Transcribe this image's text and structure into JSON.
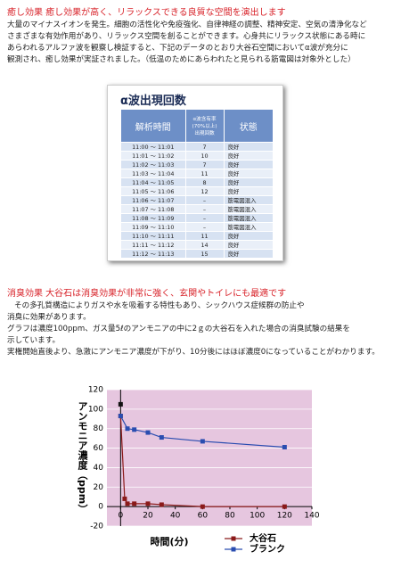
{
  "section1": {
    "heading": "癒し効果 癒し効果が高く、リラックスできる良質な空間を演出します",
    "lines": [
      "大量のマイナスイオンを発生。細胞の活性化や免疫強化、自律神経の調整、精神安定、空気の清浄化など",
      "さまざまな有効作用があり、リラックス空間を創ることができます。心身共にリラックス状態にある時に",
      "あらわれるアルファ波を観察し検証すると、下記のデータのとおり大谷石空間においてα波が充分に",
      "観測され、癒し効果が実証されました。（低温のためにあらわれたと見られる筋電図は対象外とした）"
    ]
  },
  "table": {
    "title": "α波出現回数",
    "headers": [
      "解析時間",
      [
        "α波含有率",
        "(70%以上)",
        "出現回数"
      ],
      "状態"
    ],
    "rows": [
      [
        "11:00 ～ 11:01",
        "7",
        "良好"
      ],
      [
        "11:01 ～ 11:02",
        "10",
        "良好"
      ],
      [
        "11:02 ～ 11:03",
        "7",
        "良好"
      ],
      [
        "11:03 ～ 11:04",
        "11",
        "良好"
      ],
      [
        "11:04 ～ 11:05",
        "8",
        "良好"
      ],
      [
        "11:05 ～ 11:06",
        "12",
        "良好"
      ],
      [
        "11:06 ～ 11:07",
        "–",
        "筋電図混入"
      ],
      [
        "11:07 ～ 11:08",
        "–",
        "筋電図混入"
      ],
      [
        "11:08 ～ 11:09",
        "–",
        "筋電図混入"
      ],
      [
        "11:09 ～ 11:10",
        "–",
        "筋電図混入"
      ],
      [
        "11:10 ～ 11:11",
        "11",
        "良好"
      ],
      [
        "11:11 ～ 11:12",
        "14",
        "良好"
      ],
      [
        "11:12 ～ 11:13",
        "15",
        "良好"
      ]
    ]
  },
  "section2": {
    "heading": "消臭効果 大谷石は消臭効果が非常に強く、玄関やトイレにも最適です",
    "lines": [
      "その多孔質構造によりガスや水を吸着する特性もあり、シックハウス症候群の防止や",
      "消臭に効果があります。",
      "グラフは濃度100ppm、ガス量5ℓのアンモニアの中に2ｇの大谷石を入れた場合の消臭試験の結果を",
      "示しています。",
      "実権開始直後より、急激にアンモニア濃度が下がり、10分後にはほぼ濃度0になっていることがわかります。"
    ]
  },
  "chart_data": {
    "type": "line",
    "xlabel": "時間(分)",
    "ylabel": "アンモニア濃度（ppm）",
    "xlim": [
      -10,
      140
    ],
    "xticks": [
      0,
      20,
      40,
      60,
      80,
      100,
      120,
      140
    ],
    "ylim": [
      -20,
      120
    ],
    "yticks": [
      -20,
      0,
      20,
      40,
      60,
      80,
      100,
      120
    ],
    "grid": true,
    "background": "#e6c6df",
    "series": [
      {
        "name": "大谷石",
        "color": "#8b1a1a",
        "x": [
          0,
          3,
          5,
          10,
          20,
          30,
          60,
          120
        ],
        "values": [
          93,
          8,
          3,
          3,
          3,
          2,
          0,
          0
        ]
      },
      {
        "name": "ブランク",
        "color": "#2a4db0",
        "x": [
          0,
          5,
          10,
          20,
          30,
          60,
          120
        ],
        "values": [
          93,
          80,
          79,
          76,
          71,
          67,
          61
        ]
      },
      {
        "color": "#111111",
        "x": [
          0
        ],
        "values": [
          105
        ]
      }
    ]
  }
}
